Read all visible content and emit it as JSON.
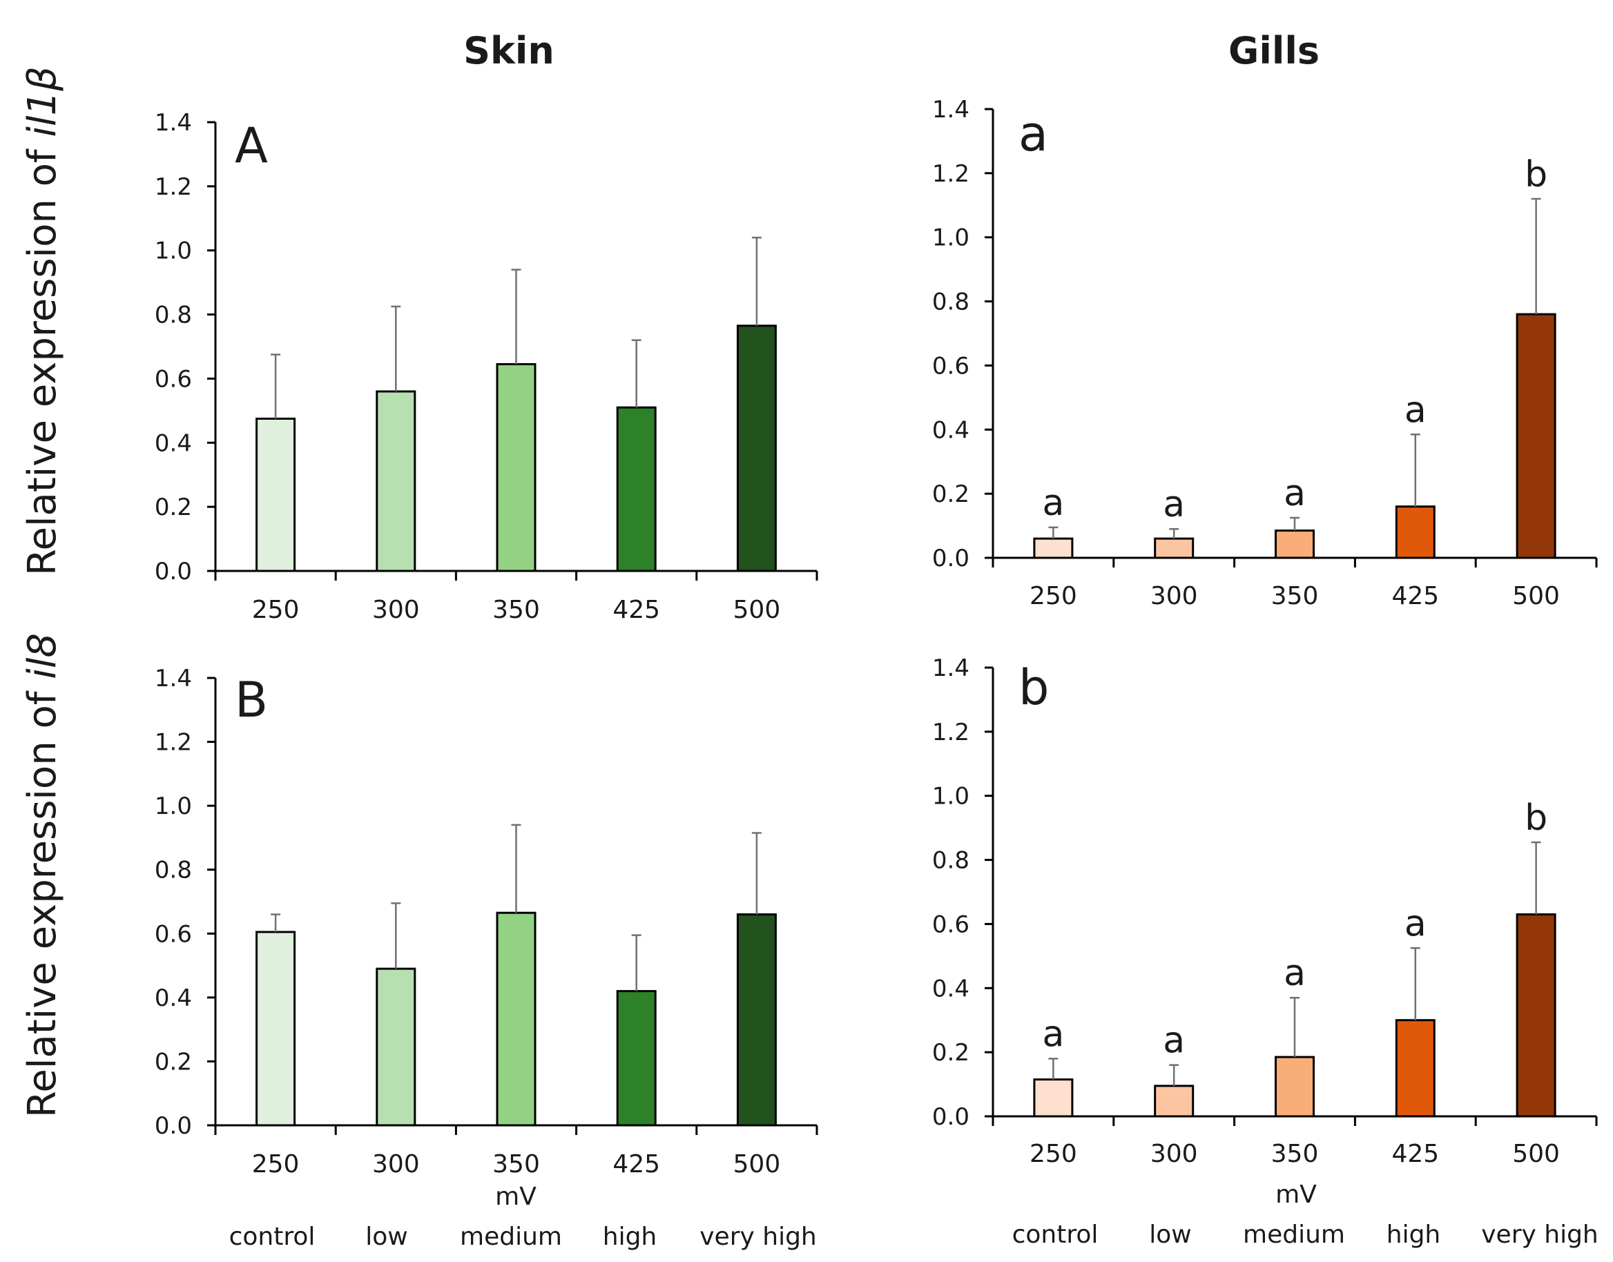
{
  "figure": {
    "col_titles": [
      "Skin",
      "Gills"
    ],
    "row_labels": [
      {
        "prefix": "Relative expression of ",
        "gene": "il1β"
      },
      {
        "prefix": "Relative expression of ",
        "gene": "il8"
      }
    ],
    "xlabel": "mV",
    "levels": [
      "control",
      "low",
      "medium",
      "high",
      "very high"
    ]
  },
  "colors": {
    "skin": [
      "#dff0dd",
      "#b6e0b0",
      "#93d184",
      "#2d8129",
      "#22521d"
    ],
    "gills": [
      "#fde0cd",
      "#fbc5a2",
      "#f9ad79",
      "#e0590b",
      "#933709"
    ],
    "axis": "#000000",
    "error_bar": "#707070"
  },
  "chart_data": [
    {
      "type": "bar",
      "panel": "A",
      "tissue": "Skin",
      "gene": "il1β",
      "categories": [
        "250",
        "300",
        "350",
        "425",
        "500"
      ],
      "values": [
        0.475,
        0.56,
        0.645,
        0.51,
        0.765
      ],
      "errors": [
        0.2,
        0.265,
        0.295,
        0.21,
        0.275
      ],
      "significance": [],
      "ylim": [
        0,
        1.4
      ],
      "yticks": [
        "0.0",
        "0.2",
        "0.4",
        "0.6",
        "0.8",
        "1.0",
        "1.2",
        "1.4"
      ],
      "ylabel": "Relative expression of il1β"
    },
    {
      "type": "bar",
      "panel": "a",
      "tissue": "Gills",
      "gene": "il1β",
      "categories": [
        "250",
        "300",
        "350",
        "425",
        "500"
      ],
      "values": [
        0.06,
        0.06,
        0.085,
        0.16,
        0.76
      ],
      "errors": [
        0.035,
        0.03,
        0.04,
        0.225,
        0.36
      ],
      "significance": [
        "a",
        "a",
        "a",
        "a",
        "b"
      ],
      "ylim": [
        0,
        1.4
      ],
      "yticks": [
        "0.0",
        "0.2",
        "0.4",
        "0.6",
        "0.8",
        "1.0",
        "1.2",
        "1.4"
      ]
    },
    {
      "type": "bar",
      "panel": "B",
      "tissue": "Skin",
      "gene": "il8",
      "categories": [
        "250",
        "300",
        "350",
        "425",
        "500"
      ],
      "values": [
        0.605,
        0.49,
        0.665,
        0.42,
        0.66
      ],
      "errors": [
        0.055,
        0.205,
        0.275,
        0.175,
        0.255
      ],
      "significance": [],
      "ylim": [
        0,
        1.4
      ],
      "yticks": [
        "0.0",
        "0.2",
        "0.4",
        "0.6",
        "0.8",
        "1.0",
        "1.2",
        "1.4"
      ],
      "ylabel": "Relative expression of il8",
      "xlabel": "mV"
    },
    {
      "type": "bar",
      "panel": "b",
      "tissue": "Gills",
      "gene": "il8",
      "categories": [
        "250",
        "300",
        "350",
        "425",
        "500"
      ],
      "values": [
        0.115,
        0.095,
        0.185,
        0.3,
        0.63
      ],
      "errors": [
        0.065,
        0.065,
        0.185,
        0.225,
        0.225
      ],
      "significance": [
        "a",
        "a",
        "a",
        "a",
        "b"
      ],
      "ylim": [
        0,
        1.4
      ],
      "yticks": [
        "0.0",
        "0.2",
        "0.4",
        "0.6",
        "0.8",
        "1.0",
        "1.2",
        "1.4"
      ],
      "xlabel": "mV"
    }
  ]
}
